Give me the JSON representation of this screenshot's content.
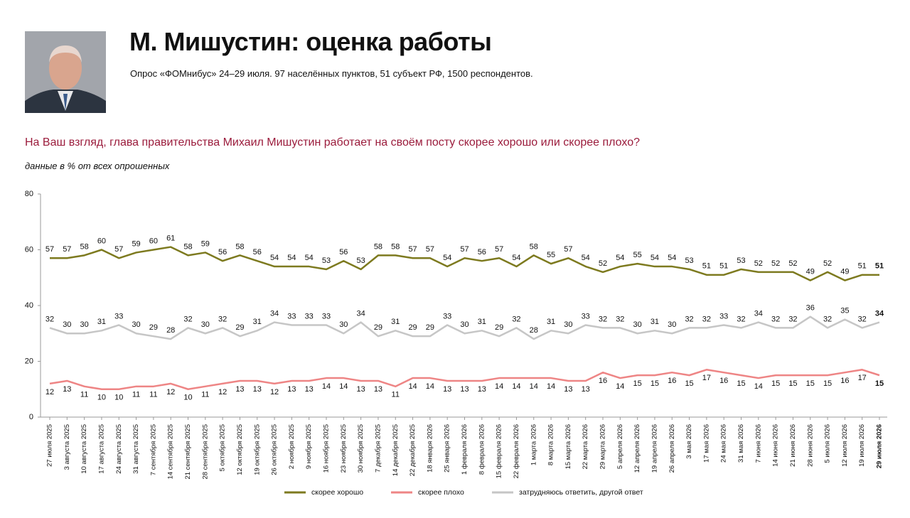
{
  "header": {
    "title": "М. Мишустин: оценка работы",
    "subtitle": "Опрос «ФОМнибус» 24–29 июля. 97 населённых пунктов, 51 субъект РФ, 1500 респондентов."
  },
  "chart_data": {
    "type": "line",
    "title": "На Ваш взгляд, глава правительства Михаил Мишустин работает на своём посту скорее хорошо или скорее плохо?",
    "subtitle": "данные в % от всех опрошенных",
    "categories": [
      "27 июля 2025",
      "3 августа 2025",
      "10 августа 2025",
      "17 августа 2025",
      "24 августа 2025",
      "31 августа 2025",
      "7 сентября 2025",
      "14 сентября 2025",
      "21 сентября 2025",
      "28 сентября 2025",
      "5 октября 2025",
      "12 октября 2025",
      "19 октября 2025",
      "26 октября 2025",
      "2 ноября 2025",
      "9 ноября 2025",
      "16 ноября 2025",
      "23 ноября 2025",
      "30 ноября 2025",
      "7 декабря 2025",
      "14 декабря 2025",
      "22 декабря 2025",
      "18 января 2026",
      "25 января 2026",
      "1 февраля 2026",
      "8 февраля 2026",
      "15 февраля 2026",
      "22 февраля 2026",
      "1 марта 2026",
      "8 марта 2026",
      "15 марта 2026",
      "22 марта 2026",
      "29 марта 2026",
      "5 апреля 2026",
      "12 апреля 2026",
      "19 апреля 2026",
      "26 апреля 2026",
      "3 мая 2026",
      "17 мая 2026",
      "24 мая 2026",
      "31 мая 2026",
      "7 июня 2026",
      "14 июня 2026",
      "21 июня 2026",
      "28 июня 2026",
      "5 июля 2026",
      "12 июля 2026",
      "19 июля 2026",
      "29 июля 2026"
    ],
    "series": [
      {
        "name": "скорее хорошо",
        "color": "#7d7a1f",
        "values": [
          57,
          57,
          58,
          60,
          57,
          59,
          60,
          61,
          58,
          59,
          56,
          58,
          56,
          54,
          54,
          54,
          53,
          56,
          53,
          58,
          58,
          57,
          57,
          54,
          57,
          56,
          57,
          54,
          58,
          55,
          57,
          54,
          52,
          54,
          55,
          54,
          54,
          53,
          51,
          51,
          53,
          52,
          52,
          52,
          49,
          52,
          49,
          51,
          51
        ]
      },
      {
        "name": "скорее плохо",
        "color": "#ee8585",
        "values": [
          12,
          13,
          11,
          10,
          10,
          11,
          11,
          12,
          10,
          11,
          12,
          13,
          13,
          12,
          13,
          13,
          14,
          14,
          13,
          13,
          11,
          14,
          14,
          13,
          13,
          13,
          14,
          14,
          14,
          14,
          13,
          13,
          16,
          14,
          15,
          15,
          16,
          15,
          17,
          16,
          15,
          14,
          15,
          15,
          15,
          15,
          16,
          17,
          15
        ]
      },
      {
        "name": "затрудняюсь ответить, другой ответ",
        "color": "#c6c6c6",
        "values": [
          32,
          30,
          30,
          31,
          33,
          30,
          29,
          28,
          32,
          30,
          32,
          29,
          31,
          34,
          33,
          33,
          33,
          30,
          34,
          29,
          31,
          29,
          29,
          33,
          30,
          31,
          29,
          32,
          28,
          31,
          30,
          33,
          32,
          32,
          30,
          31,
          30,
          32,
          32,
          33,
          32,
          34,
          32,
          32,
          36,
          32,
          35,
          32,
          34
        ]
      }
    ],
    "ylim": [
      0,
      80
    ],
    "yticks": [
      0,
      20,
      40,
      60,
      80
    ]
  }
}
